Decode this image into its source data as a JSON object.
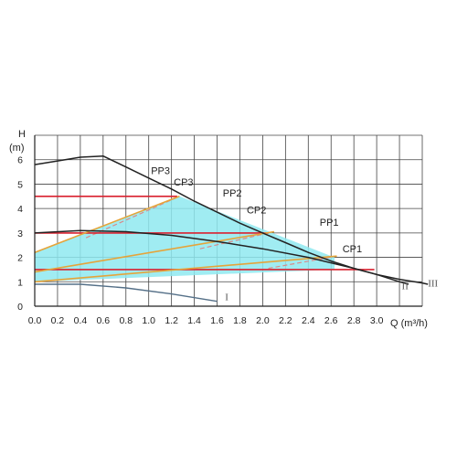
{
  "chart_data": {
    "type": "line",
    "y_title": "H",
    "y_unit": "(m)",
    "x_title": "Q (m³/h)",
    "xlim": [
      0,
      3.4
    ],
    "ylim": [
      0,
      7
    ],
    "x_ticks": [
      "0.0",
      "0.2",
      "0.4",
      "0.6",
      "0.8",
      "1.0",
      "1.2",
      "1.4",
      "1.6",
      "1.8",
      "2.0",
      "2.2",
      "2.4",
      "2.6",
      "2.8",
      "3.0"
    ],
    "y_ticks": [
      "0",
      "1",
      "2",
      "3",
      "4",
      "5",
      "6"
    ],
    "grid": true,
    "colors": {
      "region_fill": "#8fe9f0",
      "proportional": "#e5a43a",
      "constant": "#d9212f",
      "control_lines": "#d98a8a",
      "speed_curves": "#222222",
      "low_speed": "#557088",
      "grid": "#444444"
    },
    "speed_curves": [
      {
        "name": "III",
        "x": [
          0.0,
          0.2,
          0.4,
          0.6,
          0.8,
          1.0,
          1.2,
          1.4,
          1.6,
          1.8,
          2.0,
          2.2,
          2.4,
          2.6,
          2.8,
          3.0,
          3.2,
          3.4,
          3.45
        ],
        "y": [
          5.8,
          5.95,
          6.1,
          6.15,
          5.7,
          5.25,
          4.8,
          4.3,
          3.85,
          3.4,
          3.0,
          2.6,
          2.2,
          1.85,
          1.55,
          1.3,
          1.1,
          0.95,
          0.9
        ]
      },
      {
        "name": "II",
        "x": [
          0.0,
          0.4,
          0.8,
          1.2,
          1.6,
          2.0,
          2.4,
          2.8,
          3.0,
          3.2,
          3.28
        ],
        "y": [
          3.0,
          3.1,
          3.05,
          2.9,
          2.65,
          2.35,
          2.0,
          1.55,
          1.3,
          1.0,
          0.9
        ]
      },
      {
        "name": "I",
        "x": [
          0.0,
          0.4,
          0.8,
          1.2,
          1.6
        ],
        "y": [
          0.9,
          0.9,
          0.75,
          0.5,
          0.2
        ]
      }
    ],
    "proportional_lines": [
      {
        "name": "PP3",
        "x": [
          0.0,
          1.27
        ],
        "y": [
          2.2,
          4.5
        ]
      },
      {
        "name": "PP2",
        "x": [
          0.0,
          2.1
        ],
        "y": [
          1.4,
          3.05
        ]
      },
      {
        "name": "PP1",
        "x": [
          0.0,
          2.65
        ],
        "y": [
          1.0,
          2.05
        ]
      }
    ],
    "constant_lines": [
      {
        "name": "CP3",
        "x": [
          0.0,
          1.25
        ],
        "y": [
          4.5,
          4.5
        ]
      },
      {
        "name": "CP2",
        "x": [
          0.0,
          2.05
        ],
        "y": [
          3.0,
          3.0
        ]
      },
      {
        "name": "CP1",
        "x": [
          0.0,
          2.6
        ],
        "y": [
          1.5,
          1.5
        ],
        "extension_x": [
          2.6,
          2.98
        ]
      }
    ],
    "control_lines": [
      {
        "name": "PP3",
        "x": [
          0.45,
          1.27
        ],
        "y": [
          2.8,
          4.5
        ]
      },
      {
        "name": "PP2",
        "x": [
          1.45,
          2.05
        ],
        "y": [
          2.35,
          3.0
        ]
      },
      {
        "name": "PP1",
        "x": [
          2.05,
          2.65
        ],
        "y": [
          1.55,
          2.05
        ]
      }
    ],
    "region": {
      "x": [
        0.0,
        1.27,
        1.27,
        2.63,
        2.63,
        0.0
      ],
      "y": [
        2.2,
        4.5,
        4.5,
        2.0,
        1.5,
        1.0
      ]
    },
    "labels": [
      {
        "text": "PP3",
        "x": 1.02,
        "y": 5.4
      },
      {
        "text": "CP3",
        "x": 1.22,
        "y": 4.95
      },
      {
        "text": "PP2",
        "x": 1.65,
        "y": 4.5
      },
      {
        "text": "CP2",
        "x": 1.86,
        "y": 3.8
      },
      {
        "text": "PP1",
        "x": 2.5,
        "y": 3.3
      },
      {
        "text": "CP1",
        "x": 2.7,
        "y": 2.2
      },
      {
        "text": "III",
        "x": 3.45,
        "y": 0.8
      },
      {
        "text": "II",
        "x": 3.22,
        "y": 0.7
      },
      {
        "text": "I",
        "x": 1.67,
        "y": 0.25
      }
    ]
  }
}
